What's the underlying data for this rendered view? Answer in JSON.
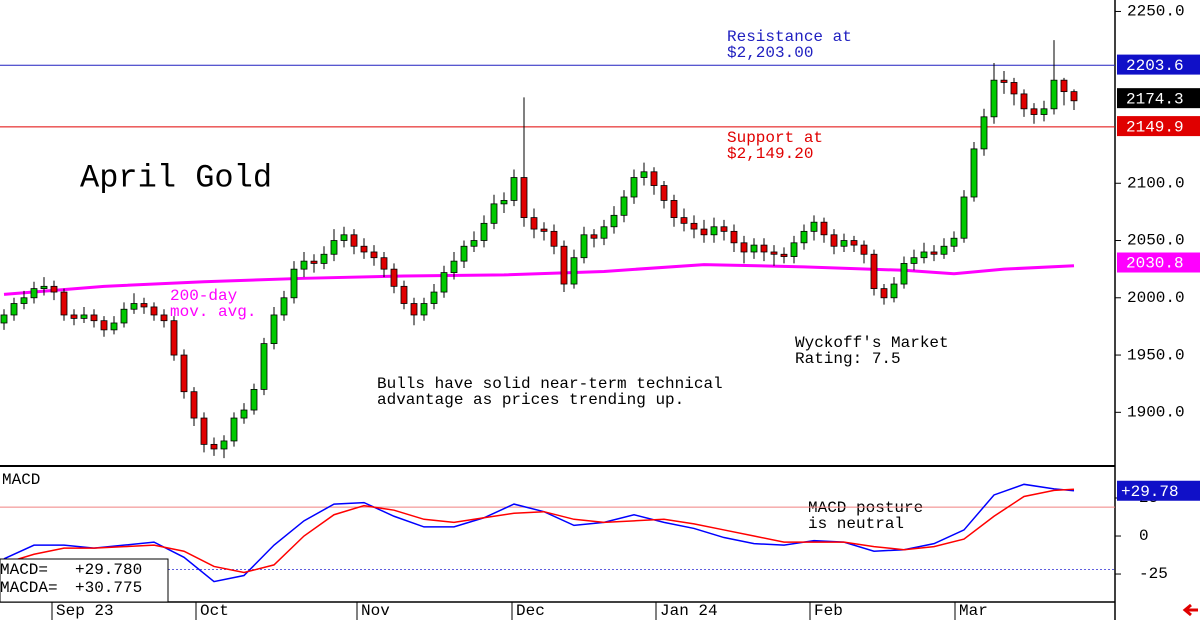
{
  "chart_data": {
    "type": "candlestick",
    "title": "April Gold",
    "ylim": [
      1854,
      2260
    ],
    "yticks": [
      {
        "value": 2250,
        "label": "2250.0"
      },
      {
        "value": 2100,
        "label": "2100.0"
      },
      {
        "value": 2050,
        "label": "2050.0"
      },
      {
        "value": 2000,
        "label": "2000.0"
      },
      {
        "value": 1950,
        "label": "1950.0"
      },
      {
        "value": 1900,
        "label": "1900.0"
      }
    ],
    "xlim": [
      -0.4,
      111.1
    ],
    "xticks": [
      {
        "value": 4.8,
        "label": "Sep 23"
      },
      {
        "value": 19.2,
        "label": "Oct"
      },
      {
        "value": 35.3,
        "label": "Nov"
      },
      {
        "value": 50.8,
        "label": "Dec"
      },
      {
        "value": 65.2,
        "label": "Jan 24"
      },
      {
        "value": 80.6,
        "label": "Feb"
      },
      {
        "value": 95.1,
        "label": "Mar"
      }
    ],
    "up_color": "#00c800",
    "down_color": "#e00000",
    "open": [
      1978,
      1985,
      1995,
      2000,
      2008,
      2010,
      2005,
      1985,
      1982,
      1985,
      1980,
      1972,
      1978,
      1990,
      1995,
      1992,
      1985,
      1980,
      1950,
      1918,
      1895,
      1872,
      1868,
      1875,
      1895,
      1902,
      1920,
      1960,
      1985,
      2000,
      2025,
      2032,
      2030,
      2038,
      2050,
      2055,
      2045,
      2040,
      2035,
      2025,
      2010,
      1995,
      1985,
      1995,
      2005,
      2022,
      2032,
      2045,
      2050,
      2065,
      2082,
      2085,
      2105,
      2070,
      2060,
      2058,
      2045,
      2012,
      2035,
      2055,
      2052,
      2062,
      2072,
      2088,
      2105,
      2110,
      2098,
      2085,
      2070,
      2065,
      2060,
      2055,
      2062,
      2058,
      2048,
      2040,
      2046,
      2040,
      2038,
      2036,
      2048,
      2058,
      2066,
      2055,
      2045,
      2050,
      2046,
      2038,
      2008,
      2000,
      2012,
      2030,
      2035,
      2040,
      2038,
      2045,
      2052,
      2088,
      2130,
      2158,
      2190,
      2188,
      2178,
      2165,
      2160,
      2165,
      2190,
      2180
    ],
    "high": [
      1990,
      2000,
      2006,
      2014,
      2018,
      2015,
      2008,
      1990,
      1992,
      1990,
      1984,
      1984,
      1996,
      2004,
      2000,
      1996,
      1990,
      1984,
      1955,
      1922,
      1900,
      1878,
      1880,
      1900,
      1908,
      1925,
      1965,
      1992,
      2006,
      2032,
      2040,
      2038,
      2045,
      2060,
      2062,
      2060,
      2052,
      2046,
      2040,
      2030,
      2015,
      2000,
      2000,
      2012,
      2028,
      2040,
      2050,
      2058,
      2072,
      2090,
      2092,
      2112,
      2175,
      2078,
      2066,
      2064,
      2050,
      2042,
      2062,
      2060,
      2068,
      2080,
      2094,
      2112,
      2118,
      2114,
      2102,
      2090,
      2078,
      2072,
      2068,
      2070,
      2068,
      2064,
      2054,
      2052,
      2052,
      2046,
      2044,
      2054,
      2064,
      2072,
      2070,
      2060,
      2056,
      2054,
      2050,
      2042,
      2012,
      2018,
      2036,
      2042,
      2048,
      2046,
      2052,
      2058,
      2094,
      2136,
      2165,
      2205,
      2198,
      2192,
      2182,
      2170,
      2172,
      2225,
      2192,
      2182
    ],
    "low": [
      1972,
      1980,
      1990,
      1995,
      2002,
      1998,
      1980,
      1976,
      1978,
      1974,
      1966,
      1968,
      1974,
      1986,
      1986,
      1980,
      1974,
      1945,
      1912,
      1888,
      1865,
      1862,
      1860,
      1870,
      1890,
      1898,
      1915,
      1955,
      1980,
      1995,
      2018,
      2022,
      2025,
      2032,
      2044,
      2038,
      2034,
      2028,
      2018,
      2004,
      1990,
      1976,
      1980,
      1990,
      2000,
      2016,
      2026,
      2040,
      2044,
      2060,
      2074,
      2080,
      2062,
      2052,
      2050,
      2038,
      2005,
      2008,
      2030,
      2044,
      2046,
      2056,
      2066,
      2082,
      2098,
      2090,
      2078,
      2062,
      2058,
      2052,
      2048,
      2048,
      2050,
      2040,
      2030,
      2034,
      2032,
      2028,
      2030,
      2030,
      2042,
      2050,
      2048,
      2038,
      2040,
      2040,
      2030,
      2002,
      1994,
      1996,
      2008,
      2024,
      2030,
      2032,
      2034,
      2040,
      2048,
      2084,
      2124,
      2152,
      2178,
      2168,
      2158,
      2152,
      2154,
      2160,
      2168,
      2164
    ],
    "close": [
      1985,
      1995,
      2000,
      2008,
      2010,
      2005,
      1985,
      1982,
      1985,
      1980,
      1972,
      1978,
      1990,
      1995,
      1992,
      1985,
      1980,
      1950,
      1918,
      1895,
      1872,
      1868,
      1875,
      1895,
      1902,
      1920,
      1960,
      1985,
      2000,
      2025,
      2032,
      2030,
      2038,
      2050,
      2055,
      2045,
      2040,
      2035,
      2025,
      2010,
      1995,
      1985,
      1995,
      2005,
      2022,
      2032,
      2045,
      2050,
      2065,
      2082,
      2085,
      2105,
      2070,
      2060,
      2058,
      2045,
      2012,
      2035,
      2055,
      2052,
      2062,
      2072,
      2088,
      2105,
      2110,
      2098,
      2085,
      2070,
      2065,
      2060,
      2055,
      2062,
      2058,
      2048,
      2040,
      2046,
      2040,
      2038,
      2036,
      2048,
      2058,
      2066,
      2055,
      2045,
      2050,
      2046,
      2038,
      2008,
      2000,
      2012,
      2030,
      2035,
      2040,
      2038,
      2045,
      2052,
      2088,
      2130,
      2158,
      2190,
      2188,
      2178,
      2165,
      2160,
      2165,
      2190,
      2180,
      2172
    ],
    "moving_average": {
      "color": "#ff00ff",
      "x": [
        0,
        10,
        20,
        30,
        40,
        50,
        60,
        70,
        80,
        90,
        95,
        100,
        107
      ],
      "values": [
        2003,
        2010,
        2014,
        2017,
        2019,
        2020,
        2023,
        2029,
        2027,
        2024,
        2021,
        2025,
        2028
      ]
    },
    "levels": [
      {
        "value": 2203,
        "color": "#2020c0",
        "text": [
          "Resistance at",
          "$2,203.00"
        ]
      },
      {
        "value": 2149.2,
        "color": "#e00000",
        "text": [
          "Support at",
          "$2,149.20"
        ]
      }
    ],
    "price_markers": [
      {
        "value": 2203.6,
        "color": "#1010c8"
      },
      {
        "value": 2174.3,
        "color": "#000000"
      },
      {
        "value": 2149.9,
        "color": "#e00000"
      },
      {
        "value": 2030.8,
        "color": "#ff00ff"
      }
    ],
    "annotations": {
      "ma_label": [
        "200-day",
        "mov. avg."
      ],
      "comment": [
        "Bulls have solid near-term technical",
        "advantage as prices trending up."
      ],
      "rating": [
        "Wyckoff's Market",
        "Rating: 7.5"
      ],
      "macd_comment": [
        "MACD posture",
        "is neutral"
      ]
    },
    "macd": {
      "label": "MACD",
      "ylim": [
        -43.4,
        45.4
      ],
      "yticks": [
        25,
        0,
        -25
      ],
      "reference_lines": [
        {
          "value": 19,
          "color": "#f08080"
        },
        {
          "value": -22,
          "color": "#6060e0"
        }
      ],
      "x": [
        0,
        3,
        6,
        9,
        12,
        15,
        18,
        21,
        24,
        27,
        30,
        33,
        36,
        39,
        42,
        45,
        48,
        51,
        54,
        57,
        60,
        63,
        66,
        69,
        72,
        75,
        78,
        81,
        84,
        87,
        90,
        93,
        96,
        99,
        102,
        105,
        107
      ],
      "series": [
        {
          "name": "MACD",
          "color": "#0000ff",
          "values": [
            -15,
            -6,
            -6,
            -8,
            -6,
            -4,
            -14,
            -30,
            -26,
            -6,
            10,
            21,
            22,
            13,
            6,
            6,
            12,
            21,
            16,
            7,
            9,
            14,
            9,
            5,
            -1,
            -5,
            -6,
            -3,
            -4,
            -10,
            -9,
            -5,
            4,
            27,
            34,
            31,
            29.78
          ]
        },
        {
          "name": "MACDA",
          "color": "#ff0000",
          "values": [
            -18,
            -12,
            -8,
            -8,
            -7,
            -6,
            -10,
            -20,
            -24,
            -19,
            0,
            14,
            20,
            17,
            11,
            9,
            12,
            15,
            16,
            11,
            9,
            10,
            11,
            8,
            4,
            0,
            -4,
            -4,
            -4,
            -7,
            -9,
            -7,
            -2,
            13,
            26,
            30,
            30.775
          ]
        }
      ],
      "readout": [
        {
          "label": "MACD=",
          "value": 29.78,
          "value_label": "+29.780"
        },
        {
          "label": "MACDA=",
          "value": 30.775,
          "value_label": "+30.775"
        }
      ],
      "marker": {
        "value": 29.78,
        "label": "+29.78",
        "color": "#1010c8"
      }
    }
  }
}
